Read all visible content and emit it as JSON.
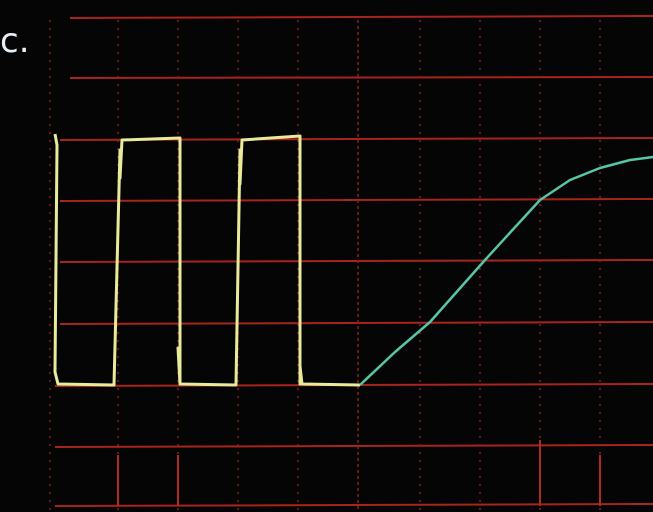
{
  "panel_label": "c."
}
